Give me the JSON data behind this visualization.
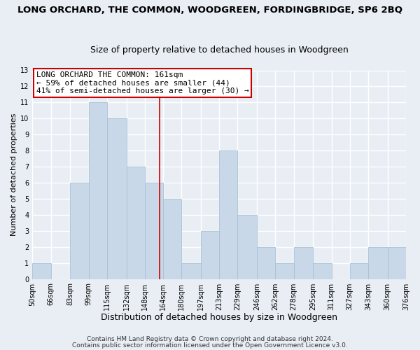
{
  "title": "LONG ORCHARD, THE COMMON, WOODGREEN, FORDINGBRIDGE, SP6 2BQ",
  "subtitle": "Size of property relative to detached houses in Woodgreen",
  "xlabel": "Distribution of detached houses by size in Woodgreen",
  "ylabel": "Number of detached properties",
  "bar_color": "#c8d8e8",
  "bar_edge_color": "#a8c0d4",
  "reference_line_x": 161,
  "reference_line_color": "#cc0000",
  "bin_edges": [
    50,
    66,
    83,
    99,
    115,
    132,
    148,
    164,
    180,
    197,
    213,
    229,
    246,
    262,
    278,
    295,
    311,
    327,
    343,
    360,
    376
  ],
  "bin_labels": [
    "50sqm",
    "66sqm",
    "83sqm",
    "99sqm",
    "115sqm",
    "132sqm",
    "148sqm",
    "164sqm",
    "180sqm",
    "197sqm",
    "213sqm",
    "229sqm",
    "246sqm",
    "262sqm",
    "278sqm",
    "295sqm",
    "311sqm",
    "327sqm",
    "343sqm",
    "360sqm",
    "376sqm"
  ],
  "counts": [
    1,
    0,
    6,
    11,
    10,
    7,
    6,
    5,
    1,
    3,
    8,
    4,
    2,
    1,
    2,
    1,
    0,
    1,
    2,
    2
  ],
  "ylim": [
    0,
    13
  ],
  "yticks": [
    0,
    1,
    2,
    3,
    4,
    5,
    6,
    7,
    8,
    9,
    10,
    11,
    12,
    13
  ],
  "annotation_line1": "LONG ORCHARD THE COMMON: 161sqm",
  "annotation_line2": "← 59% of detached houses are smaller (44)",
  "annotation_line3": "41% of semi-detached houses are larger (30) →",
  "footer1": "Contains HM Land Registry data © Crown copyright and database right 2024.",
  "footer2": "Contains public sector information licensed under the Open Government Licence v3.0.",
  "background_color": "#e8eef4",
  "plot_background": "#e8eef4",
  "grid_color": "#ffffff",
  "title_fontsize": 9.5,
  "subtitle_fontsize": 9,
  "xlabel_fontsize": 9,
  "ylabel_fontsize": 8,
  "tick_fontsize": 7,
  "annotation_fontsize": 8,
  "footer_fontsize": 6.5
}
